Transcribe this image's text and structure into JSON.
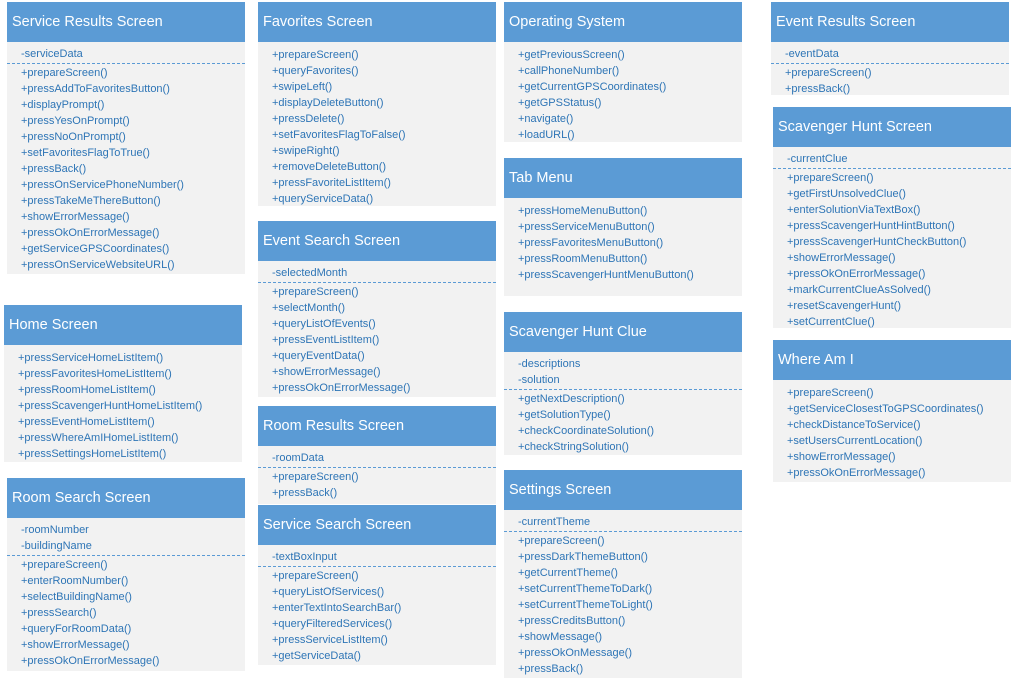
{
  "classes": [
    {
      "id": "service-results-screen",
      "title": "Service Results Screen",
      "attributes": [
        "-serviceData"
      ],
      "methods": [
        "+prepareScreen()",
        "+pressAddToFavoritesButton()",
        "+displayPrompt()",
        "+pressYesOnPrompt()",
        "+pressNoOnPrompt()",
        "+setFavoritesFlagToTrue()",
        "+pressBack()",
        "+pressOnServicePhoneNumber()",
        "+pressTakeMeThereButton()",
        "+showErrorMessage()",
        "+pressOkOnErrorMessage()",
        "+getServiceGPSCoordinates()",
        "+pressOnServiceWebsiteURL()"
      ]
    },
    {
      "id": "home-screen",
      "title": "Home Screen",
      "attributes": [],
      "methods": [
        "+pressServiceHomeListItem()",
        "+pressFavoritesHomeListItem()",
        "+pressRoomHomeListItem()",
        "+pressScavengerHuntHomeListItem()",
        "+pressEventHomeListItem()",
        "+pressWhereAmIHomeListItem()",
        "+pressSettingsHomeListItem()"
      ]
    },
    {
      "id": "room-search-screen",
      "title": "Room Search Screen",
      "attributes": [
        "-roomNumber",
        "-buildingName"
      ],
      "methods": [
        "+prepareScreen()",
        "+enterRoomNumber()",
        "+selectBuildingName()",
        "+pressSearch()",
        "+queryForRoomData()",
        "+showErrorMessage()",
        "+pressOkOnErrorMessage()"
      ]
    },
    {
      "id": "favorites-screen",
      "title": "Favorites Screen",
      "attributes": [],
      "methods": [
        "+prepareScreen()",
        "+queryFavorites()",
        "+swipeLeft()",
        "+displayDeleteButton()",
        "+pressDelete()",
        "+setFavoritesFlagToFalse()",
        "+swipeRight()",
        "+removeDeleteButton()",
        "+pressFavoriteListItem()",
        "+queryServiceData()"
      ]
    },
    {
      "id": "event-search-screen",
      "title": "Event Search Screen",
      "attributes": [
        "-selectedMonth"
      ],
      "methods": [
        "+prepareScreen()",
        "+selectMonth()",
        "+queryListOfEvents()",
        "+pressEventListItem()",
        "+queryEventData()",
        "+showErrorMessage()",
        "+pressOkOnErrorMessage()"
      ]
    },
    {
      "id": "room-results-screen",
      "title": "Room Results Screen",
      "attributes": [
        "-roomData"
      ],
      "methods": [
        "+prepareScreen()",
        "+pressBack()"
      ]
    },
    {
      "id": "service-search-screen",
      "title": "Service Search Screen",
      "attributes": [
        "-textBoxInput"
      ],
      "methods": [
        "+prepareScreen()",
        "+queryListOfServices()",
        "+enterTextIntoSearchBar()",
        "+queryFilteredServices()",
        "+pressServiceListItem()",
        "+getServiceData()"
      ]
    },
    {
      "id": "operating-system",
      "title": "Operating System",
      "attributes": [],
      "methods": [
        "+getPreviousScreen()",
        "+callPhoneNumber()",
        "+getCurrentGPSCoordinates()",
        "+getGPSStatus()",
        "+navigate()",
        "+loadURL()"
      ]
    },
    {
      "id": "tab-menu",
      "title": "Tab Menu",
      "attributes": [],
      "methods": [
        "+pressHomeMenuButton()",
        "+pressServiceMenuButton()",
        "+pressFavoritesMenuButton()",
        "+pressRoomMenuButton()",
        "+pressScavengerHuntMenuButton()"
      ]
    },
    {
      "id": "scavenger-hunt-clue",
      "title": "Scavenger Hunt Clue",
      "attributes": [
        "-descriptions",
        "-solution"
      ],
      "methods": [
        "+getNextDescription()",
        "+getSolutionType()",
        "+checkCoordinateSolution()",
        "+checkStringSolution()"
      ]
    },
    {
      "id": "settings-screen",
      "title": "Settings Screen",
      "attributes": [
        "-currentTheme"
      ],
      "methods": [
        "+prepareScreen()",
        "+pressDarkThemeButton()",
        "+getCurrentTheme()",
        "+setCurrentThemeToDark()",
        "+setCurrentThemeToLight()",
        "+pressCreditsButton()",
        "+showMessage()",
        "+pressOkOnMessage()",
        "+pressBack()"
      ]
    },
    {
      "id": "event-results-screen",
      "title": "Event Results Screen",
      "attributes": [
        "-eventData"
      ],
      "methods": [
        "+prepareScreen()",
        "+pressBack()"
      ]
    },
    {
      "id": "scavenger-hunt-screen",
      "title": "Scavenger Hunt Screen",
      "attributes": [
        "-currentClue"
      ],
      "methods": [
        "+prepareScreen()",
        "+getFirstUnsolvedClue()",
        "+enterSolutionViaTextBox()",
        "+pressScavengerHuntHintButton()",
        "+pressScavengerHuntCheckButton()",
        "+showErrorMessage()",
        "+pressOkOnErrorMessage()",
        "+markCurrentClueAsSolved()",
        "+resetScavengerHunt()",
        "+setCurrentClue()"
      ]
    },
    {
      "id": "where-am-i",
      "title": "Where Am I",
      "attributes": [],
      "methods": [
        "+prepareScreen()",
        "+getServiceClosestToGPSCoordinates()",
        "+checkDistanceToService()",
        "+setUsersCurrentLocation()",
        "+showErrorMessage()",
        "+pressOkOnErrorMessage()"
      ]
    }
  ]
}
